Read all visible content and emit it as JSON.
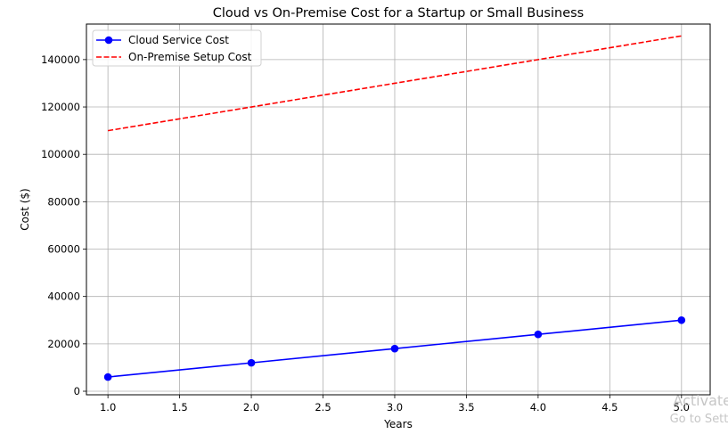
{
  "chart_data": {
    "type": "line",
    "title": "Cloud vs On-Premise Cost for a Startup or Small Business",
    "xlabel": "Years",
    "ylabel": "Cost ($)",
    "x": [
      1,
      2,
      3,
      4,
      5
    ],
    "xlim": [
      0.85,
      5.2
    ],
    "ylim": [
      -1500,
      155000
    ],
    "x_ticks": [
      1.0,
      1.5,
      2.0,
      2.5,
      3.0,
      3.5,
      4.0,
      4.5,
      5.0
    ],
    "x_tick_labels": [
      "1.0",
      "1.5",
      "2.0",
      "2.5",
      "3.0",
      "3.5",
      "4.0",
      "4.5",
      "5.0"
    ],
    "y_ticks": [
      0,
      20000,
      40000,
      60000,
      80000,
      100000,
      120000,
      140000
    ],
    "y_tick_labels": [
      "0",
      "20000",
      "40000",
      "60000",
      "80000",
      "100000",
      "120000",
      "140000"
    ],
    "grid": true,
    "legend_position": "top-left",
    "series": [
      {
        "name": "Cloud Service Cost",
        "values": [
          6000,
          12000,
          18000,
          24000,
          30000
        ],
        "color": "#0000ff",
        "style": "solid",
        "marker": "circle"
      },
      {
        "name": "On-Premise Setup Cost",
        "values": [
          110000,
          120000,
          130000,
          140000,
          150000
        ],
        "color": "#ff0000",
        "style": "dashed",
        "marker": "none"
      }
    ]
  },
  "watermark": {
    "line1": "Activate",
    "line2": "Go to Setti"
  }
}
